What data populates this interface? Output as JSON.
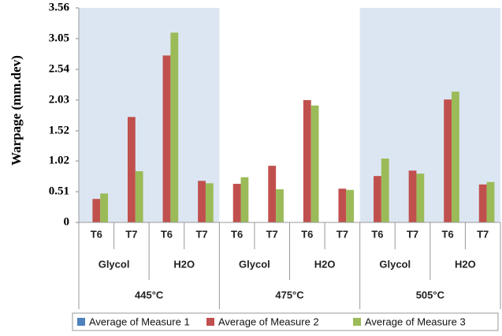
{
  "chart_data": {
    "type": "bar",
    "y_label": "Warpage (mm.dev)",
    "categories": [
      "T6",
      "T7",
      "T6",
      "T7",
      "T6",
      "T7",
      "T6",
      "T7",
      "T6",
      "T7",
      "T6",
      "T7"
    ],
    "subgroups": [
      "Glycol",
      "H2O",
      "Glycol",
      "H2O",
      "Glycol",
      "H2O"
    ],
    "groups": [
      "445°C",
      "475°C",
      "505°C"
    ],
    "series": [
      {
        "name": "Average of Measure 1",
        "color": "#4f81bd",
        "values": [
          null,
          null,
          null,
          null,
          null,
          null,
          null,
          null,
          null,
          null,
          null,
          null
        ]
      },
      {
        "name": "Average of Measure 2",
        "color": "#c0504d",
        "values": [
          0.39,
          1.75,
          2.77,
          0.69,
          0.64,
          0.94,
          2.03,
          0.56,
          0.77,
          0.86,
          2.04,
          0.63
        ]
      },
      {
        "name": "Average of Measure 3",
        "color": "#9bbb59",
        "values": [
          0.48,
          0.85,
          3.15,
          0.65,
          0.75,
          0.55,
          1.94,
          0.54,
          1.06,
          0.81,
          2.17,
          0.67
        ]
      }
    ],
    "ylim": [
      0,
      3.56
    ],
    "yticks": [
      0,
      0.51,
      1.02,
      1.52,
      2.03,
      2.54,
      3.05,
      3.56
    ],
    "shaded_groups": [
      0,
      2
    ],
    "shade_color": "#dce6f2"
  }
}
